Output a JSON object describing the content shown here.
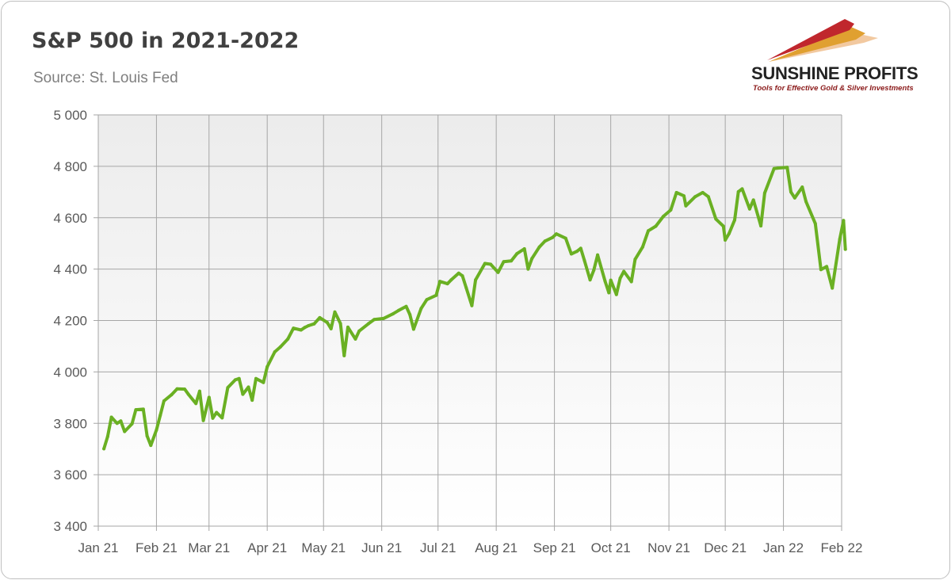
{
  "header": {
    "title": "S&P 500 in 2021-2022",
    "subtitle": "Source: St. Louis Fed"
  },
  "logo": {
    "name": "SUNSHINE PROFITS",
    "tagline": "Tools for Effective Gold & Silver Investments",
    "colors": [
      "#c0272d",
      "#e0a030",
      "#f2c9a0"
    ]
  },
  "chart_data": {
    "type": "line",
    "ylim": [
      3400,
      5000
    ],
    "y_ticks": [
      3400,
      3600,
      3800,
      4000,
      4200,
      4400,
      4600,
      4800,
      5000
    ],
    "y_tick_labels": [
      "3 400",
      "3 600",
      "3 800",
      "4 000",
      "4 200",
      "4 400",
      "4 600",
      "4 800",
      "5 000"
    ],
    "x_ticks": [
      "2021-01-01",
      "2021-02-01",
      "2021-03-01",
      "2021-04-01",
      "2021-05-01",
      "2021-06-01",
      "2021-07-01",
      "2021-08-01",
      "2021-09-01",
      "2021-10-01",
      "2021-11-01",
      "2021-12-01",
      "2022-01-01",
      "2022-02-01"
    ],
    "x_tick_labels": [
      "Jan 21",
      "Feb 21",
      "Mar 21",
      "Apr 21",
      "May 21",
      "Jun 21",
      "Jul 21",
      "Aug 21",
      "Sep 21",
      "Oct 21",
      "Nov 21",
      "Dec 21",
      "Jan 22",
      "Feb 22"
    ],
    "grid": true,
    "line_color": "#6ab023",
    "series": [
      {
        "x": [
          "2021-01-04",
          "2021-01-06",
          "2021-01-08",
          "2021-01-11",
          "2021-01-13",
          "2021-01-15",
          "2021-01-19",
          "2021-01-21",
          "2021-01-25",
          "2021-01-27",
          "2021-01-29",
          "2021-02-01",
          "2021-02-03",
          "2021-02-05",
          "2021-02-09",
          "2021-02-12",
          "2021-02-16",
          "2021-02-18",
          "2021-02-22",
          "2021-02-24",
          "2021-02-26",
          "2021-03-01",
          "2021-03-03",
          "2021-03-05",
          "2021-03-08",
          "2021-03-11",
          "2021-03-15",
          "2021-03-17",
          "2021-03-19",
          "2021-03-22",
          "2021-03-24",
          "2021-03-26",
          "2021-03-30",
          "2021-04-01",
          "2021-04-05",
          "2021-04-08",
          "2021-04-12",
          "2021-04-15",
          "2021-04-19",
          "2021-04-21",
          "2021-04-23",
          "2021-04-26",
          "2021-04-29",
          "2021-05-03",
          "2021-05-05",
          "2021-05-07",
          "2021-05-10",
          "2021-05-12",
          "2021-05-14",
          "2021-05-18",
          "2021-05-20",
          "2021-05-25",
          "2021-05-28",
          "2021-06-02",
          "2021-06-07",
          "2021-06-10",
          "2021-06-14",
          "2021-06-16",
          "2021-06-18",
          "2021-06-22",
          "2021-06-25",
          "2021-06-30",
          "2021-07-02",
          "2021-07-06",
          "2021-07-08",
          "2021-07-12",
          "2021-07-14",
          "2021-07-16",
          "2021-07-19",
          "2021-07-21",
          "2021-07-26",
          "2021-07-29",
          "2021-08-02",
          "2021-08-05",
          "2021-08-09",
          "2021-08-12",
          "2021-08-16",
          "2021-08-18",
          "2021-08-20",
          "2021-08-24",
          "2021-08-27",
          "2021-08-31",
          "2021-09-02",
          "2021-09-07",
          "2021-09-10",
          "2021-09-13",
          "2021-09-15",
          "2021-09-17",
          "2021-09-20",
          "2021-09-22",
          "2021-09-24",
          "2021-09-28",
          "2021-09-30",
          "2021-10-01",
          "2021-10-04",
          "2021-10-06",
          "2021-10-08",
          "2021-10-12",
          "2021-10-14",
          "2021-10-18",
          "2021-10-21",
          "2021-10-25",
          "2021-10-29",
          "2021-11-02",
          "2021-11-05",
          "2021-11-09",
          "2021-11-10",
          "2021-11-15",
          "2021-11-19",
          "2021-11-22",
          "2021-11-26",
          "2021-11-30",
          "2021-12-01",
          "2021-12-03",
          "2021-12-06",
          "2021-12-08",
          "2021-12-10",
          "2021-12-14",
          "2021-12-16",
          "2021-12-20",
          "2021-12-22",
          "2021-12-27",
          "2021-12-29",
          "2022-01-03",
          "2022-01-05",
          "2022-01-07",
          "2022-01-11",
          "2022-01-13",
          "2022-01-18",
          "2022-01-21",
          "2022-01-24",
          "2022-01-27",
          "2022-01-31",
          "2022-02-02",
          "2022-02-03"
        ],
        "values": [
          3701,
          3748,
          3824,
          3800,
          3809,
          3768,
          3798,
          3853,
          3855,
          3751,
          3714,
          3774,
          3831,
          3887,
          3911,
          3934,
          3933,
          3913,
          3877,
          3925,
          3811,
          3901,
          3820,
          3842,
          3821,
          3939,
          3969,
          3974,
          3913,
          3941,
          3890,
          3974,
          3959,
          4020,
          4078,
          4097,
          4128,
          4170,
          4163,
          4173,
          4180,
          4187,
          4211,
          4192,
          4168,
          4233,
          4188,
          4063,
          4174,
          4128,
          4159,
          4188,
          4204,
          4208,
          4226,
          4239,
          4255,
          4223,
          4166,
          4247,
          4281,
          4298,
          4352,
          4343,
          4358,
          4384,
          4374,
          4327,
          4258,
          4358,
          4422,
          4419,
          4387,
          4429,
          4432,
          4460,
          4479,
          4400,
          4441,
          4486,
          4509,
          4523,
          4537,
          4520,
          4459,
          4469,
          4481,
          4433,
          4358,
          4396,
          4455,
          4353,
          4308,
          4357,
          4301,
          4364,
          4391,
          4351,
          4438,
          4486,
          4549,
          4567,
          4605,
          4630,
          4698,
          4685,
          4646,
          4682,
          4698,
          4682,
          4595,
          4567,
          4513,
          4538,
          4591,
          4701,
          4712,
          4634,
          4669,
          4568,
          4696,
          4791,
          4793,
          4796,
          4700,
          4677,
          4719,
          4663,
          4577,
          4398,
          4410,
          4326,
          4516,
          4589,
          4477
        ]
      }
    ]
  }
}
